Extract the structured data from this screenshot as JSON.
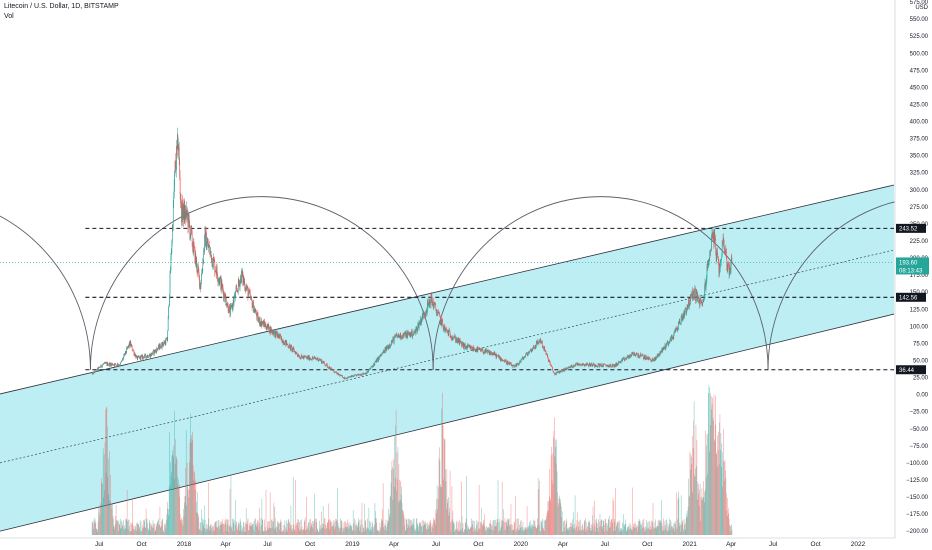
{
  "header": {
    "symbol_title": "Litecoin / U.S. Dollar, 1D, BITSTAMP",
    "volume_label": "Vol"
  },
  "chart_data": {
    "type": "candlestick",
    "title": "Litecoin / U.S. Dollar, 1D, BITSTAMP",
    "currency_label": "USD",
    "y_axis": {
      "scale": "linear",
      "ylim": [
        -210,
        578
      ],
      "ticks": [
        575,
        550,
        525,
        500,
        475,
        450,
        425,
        400,
        375,
        350,
        325,
        300,
        275,
        250,
        225,
        200,
        175,
        150,
        125,
        100,
        75,
        50,
        25,
        0,
        -25,
        -50,
        -75,
        -100,
        -125,
        -150,
        -175,
        -200
      ],
      "tick_labels": [
        "575.00",
        "550.00",
        "525.00",
        "500.00",
        "475.00",
        "450.00",
        "425.00",
        "400.00",
        "375.00",
        "350.00",
        "325.00",
        "300.00",
        "275.00",
        "250.00",
        "225.00",
        "200.00",
        "175.00",
        "150.00",
        "125.00",
        "100.00",
        "75.00",
        "50.00",
        "25.00",
        "0.00",
        "−25.00",
        "−50.00",
        "−75.00",
        "−100.00",
        "−125.00",
        "−150.00",
        "−175.00",
        "−200.00"
      ]
    },
    "x_axis": {
      "tick_labels": [
        "Jul",
        "Oct",
        "2018",
        "Apr",
        "Jul",
        "Oct",
        "2019",
        "Apr",
        "Jul",
        "Oct",
        "2020",
        "Apr",
        "Jul",
        "Oct",
        "2021",
        "Apr",
        "Jul",
        "Oct",
        "2022"
      ],
      "tick_dates": [
        "2017-07-01",
        "2017-10-01",
        "2018-01-01",
        "2018-04-01",
        "2018-07-01",
        "2018-10-01",
        "2019-01-01",
        "2019-04-01",
        "2019-07-01",
        "2019-10-01",
        "2020-01-01",
        "2020-04-01",
        "2020-07-01",
        "2020-10-01",
        "2021-01-01",
        "2021-04-01",
        "2021-07-01",
        "2021-10-01",
        "2022-01-01"
      ],
      "range": [
        "2016-11-28",
        "2022-03-20"
      ]
    },
    "price_series": {
      "name": "LTCUSD",
      "key_points": [
        {
          "date": "2017-06-15",
          "value": 30
        },
        {
          "date": "2017-07-10",
          "value": 45
        },
        {
          "date": "2017-08-15",
          "value": 44
        },
        {
          "date": "2017-09-05",
          "value": 75
        },
        {
          "date": "2017-09-20",
          "value": 53
        },
        {
          "date": "2017-10-20",
          "value": 58
        },
        {
          "date": "2017-11-25",
          "value": 80
        },
        {
          "date": "2017-12-12",
          "value": 330
        },
        {
          "date": "2017-12-19",
          "value": 370
        },
        {
          "date": "2017-12-25",
          "value": 270
        },
        {
          "date": "2018-01-08",
          "value": 260
        },
        {
          "date": "2018-02-05",
          "value": 160
        },
        {
          "date": "2018-02-15",
          "value": 230
        },
        {
          "date": "2018-03-20",
          "value": 165
        },
        {
          "date": "2018-04-10",
          "value": 120
        },
        {
          "date": "2018-05-05",
          "value": 175
        },
        {
          "date": "2018-06-10",
          "value": 110
        },
        {
          "date": "2018-07-25",
          "value": 85
        },
        {
          "date": "2018-09-10",
          "value": 55
        },
        {
          "date": "2018-10-20",
          "value": 52
        },
        {
          "date": "2018-11-25",
          "value": 32
        },
        {
          "date": "2018-12-15",
          "value": 24
        },
        {
          "date": "2019-02-01",
          "value": 32
        },
        {
          "date": "2019-04-05",
          "value": 85
        },
        {
          "date": "2019-05-15",
          "value": 90
        },
        {
          "date": "2019-06-20",
          "value": 140
        },
        {
          "date": "2019-07-20",
          "value": 95
        },
        {
          "date": "2019-09-01",
          "value": 70
        },
        {
          "date": "2019-11-01",
          "value": 60
        },
        {
          "date": "2019-12-18",
          "value": 40
        },
        {
          "date": "2020-02-12",
          "value": 80
        },
        {
          "date": "2020-03-13",
          "value": 30
        },
        {
          "date": "2020-05-01",
          "value": 45
        },
        {
          "date": "2020-07-20",
          "value": 42
        },
        {
          "date": "2020-09-01",
          "value": 60
        },
        {
          "date": "2020-10-15",
          "value": 50
        },
        {
          "date": "2020-11-25",
          "value": 85
        },
        {
          "date": "2021-01-10",
          "value": 150
        },
        {
          "date": "2021-01-28",
          "value": 130
        },
        {
          "date": "2021-02-20",
          "value": 240
        },
        {
          "date": "2021-03-05",
          "value": 180
        },
        {
          "date": "2021-03-15",
          "value": 230
        },
        {
          "date": "2021-03-25",
          "value": 180
        },
        {
          "date": "2021-04-02",
          "value": 195
        }
      ]
    },
    "current_price": {
      "value": 193.6,
      "label": "193.60",
      "countdown": "08:13:43"
    },
    "horizontal_levels": [
      {
        "value": 243.52,
        "label": "243.52"
      },
      {
        "value": 142.56,
        "label": "142.56"
      },
      {
        "value": 36.44,
        "label": "36.44"
      }
    ],
    "channel": {
      "upper_line": [
        {
          "date": "2016-11-28",
          "value": 1
        },
        {
          "date": "2022-03-20",
          "value": 307
        }
      ],
      "middle_line": [
        {
          "date": "2016-11-28",
          "value": -100
        },
        {
          "date": "2022-03-20",
          "value": 212
        }
      ],
      "lower_line": [
        {
          "date": "2016-11-28",
          "value": -200
        },
        {
          "date": "2022-03-20",
          "value": 118
        }
      ]
    },
    "cycle_arcs": [
      {
        "start": "2017-06-12",
        "end": "2019-06-25",
        "base": 36.44,
        "peak": 290
      },
      {
        "start": "2019-06-25",
        "end": "2021-06-20",
        "base": 36.44,
        "peak": 290
      },
      {
        "start": "2021-06-20",
        "end": "2023-06-15",
        "base": 36.44,
        "peak": 290
      }
    ],
    "volume": {
      "name": "Vol",
      "shown_on_axis": "price axis, below 0",
      "peak_dates": [
        "2017-07-15",
        "2017-12-10",
        "2018-01-15",
        "2019-04-05",
        "2019-07-15",
        "2020-03-13",
        "2021-01-10",
        "2021-02-10",
        "2021-02-20",
        "2021-03-10"
      ]
    },
    "colors": {
      "up": "#26a69a",
      "down": "#ef5350",
      "channel_fill": "#b2ebf2",
      "level_line": "#131722",
      "arc": "#5d606b"
    },
    "grid": false,
    "legend": "top-left"
  }
}
